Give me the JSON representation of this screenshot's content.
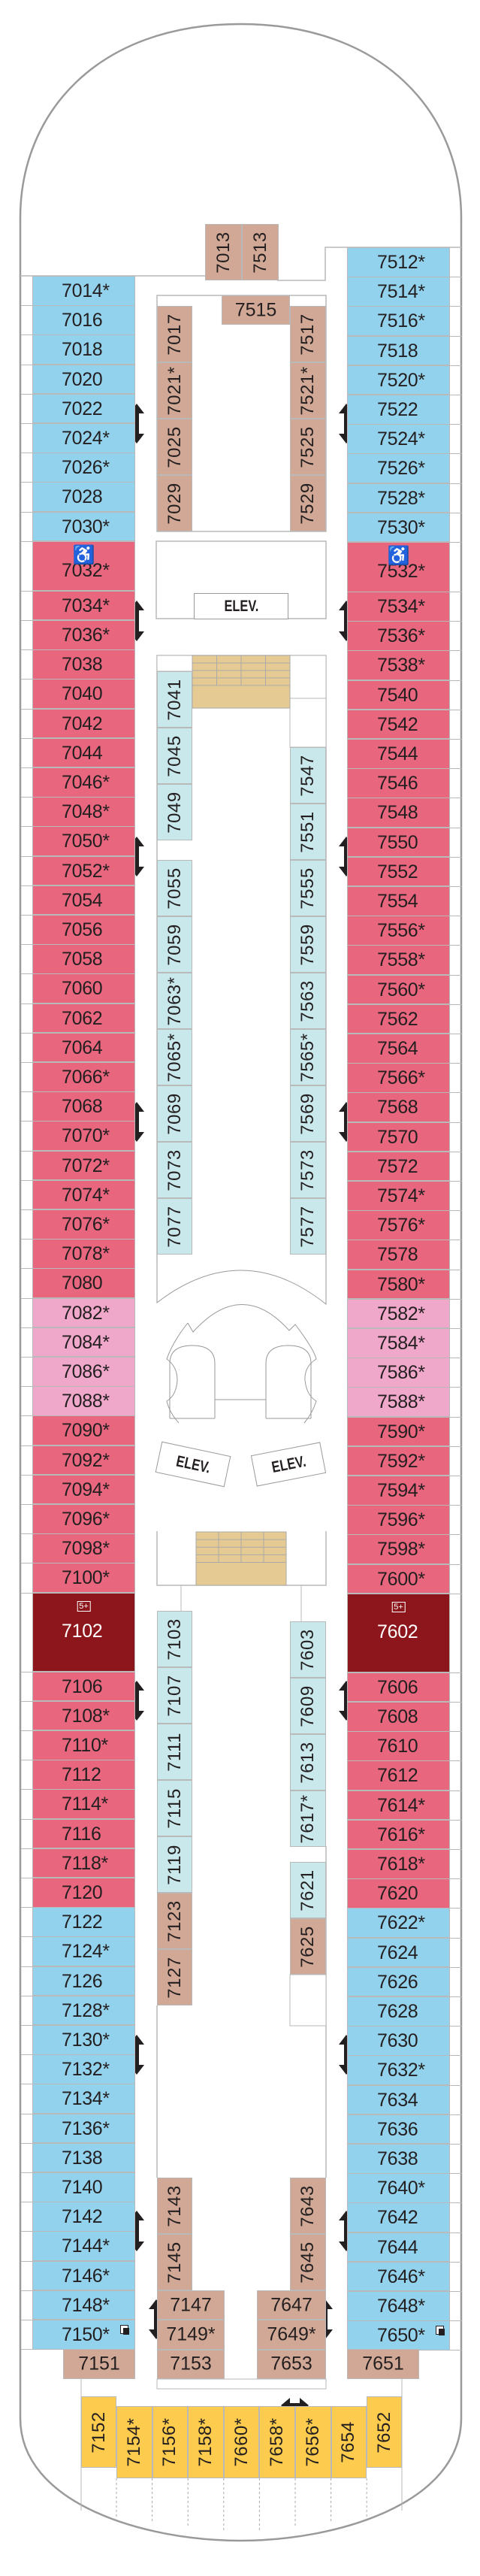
{
  "colors": {
    "blue": "#93D2EC",
    "red": "#E8667E",
    "pink": "#F0A8CA",
    "darkred": "#8C161B",
    "tan": "#D1A895",
    "cyan": "#C9E8EB",
    "yellow": "#FDCB4D",
    "stairs": "#E6CA93",
    "hull": "#9a9a9c"
  },
  "icons": {
    "accessible": "wheelchair-icon",
    "occupancy": "five-plus-icon",
    "connecting": "connecting-rooms-icon",
    "adjoining": "double-arrow-icon"
  },
  "port": [
    {
      "cat": "blue",
      "cabins": [
        "7014*",
        "7016",
        "7018",
        "7020",
        "7022",
        "7024*",
        "7026*",
        "7028",
        "7030*"
      ]
    },
    {
      "cat": "red",
      "accessible": true,
      "cabins": [
        "7032*"
      ]
    },
    {
      "cat": "red",
      "cabins": [
        "7034*",
        "7036*",
        "7038",
        "7040",
        "7042",
        "7044",
        "7046*",
        "7048*",
        "7050*",
        "7052*",
        "7054",
        "7056",
        "7058",
        "7060",
        "7062",
        "7064",
        "7066*",
        "7068",
        "7070*",
        "7072*",
        "7074*",
        "7076*",
        "7078*",
        "7080"
      ]
    },
    {
      "cat": "pink",
      "cabins": [
        "7082*",
        "7084*",
        "7086*",
        "7088*"
      ]
    },
    {
      "cat": "red",
      "cabins": [
        "7090*",
        "7092*",
        "7094*",
        "7096*",
        "7098*",
        "7100*"
      ]
    },
    {
      "cat": "darkred",
      "badge": "5+",
      "cabins": [
        "7102"
      ]
    },
    {
      "cat": "red",
      "cabins": [
        "7106",
        "7108*",
        "7110*",
        "7112",
        "7114*",
        "7116",
        "7118*",
        "7120"
      ]
    },
    {
      "cat": "blue",
      "cabins": [
        "7122",
        "7124*",
        "7126",
        "7128*",
        "7130*",
        "7132*",
        "7134*",
        "7136*",
        "7138",
        "7140",
        "7142",
        "7144*",
        "7146*",
        "7148*"
      ]
    },
    {
      "cat": "blue",
      "connecting": true,
      "cabins": [
        "7150*"
      ]
    }
  ],
  "starboard": [
    {
      "cat": "blue",
      "cabins": [
        "7512*",
        "7514*",
        "7516*",
        "7518",
        "7520*",
        "7522",
        "7524*",
        "7526*",
        "7528*",
        "7530*"
      ]
    },
    {
      "cat": "red",
      "accessible": true,
      "cabins": [
        "7532*"
      ]
    },
    {
      "cat": "red",
      "cabins": [
        "7534*",
        "7536*",
        "7538*",
        "7540",
        "7542",
        "7544",
        "7546",
        "7548",
        "7550",
        "7552",
        "7554",
        "7556*",
        "7558*",
        "7560*",
        "7562",
        "7564",
        "7566*",
        "7568",
        "7570",
        "7572",
        "7574*",
        "7576*",
        "7578",
        "7580*"
      ]
    },
    {
      "cat": "pink",
      "cabins": [
        "7582*",
        "7584*",
        "7586*",
        "7588*"
      ]
    },
    {
      "cat": "red",
      "cabins": [
        "7590*",
        "7592*",
        "7594*",
        "7596*",
        "7598*",
        "7600*"
      ]
    },
    {
      "cat": "darkred",
      "badge": "5+",
      "cabins": [
        "7602"
      ]
    },
    {
      "cat": "red",
      "cabins": [
        "7606",
        "7608",
        "7610",
        "7612",
        "7614*",
        "7616*",
        "7618*",
        "7620"
      ]
    },
    {
      "cat": "blue",
      "cabins": [
        "7622*",
        "7624",
        "7626",
        "7628",
        "7630",
        "7632*",
        "7634",
        "7636",
        "7638",
        "7640*",
        "7642",
        "7644",
        "7646*",
        "7648*"
      ]
    },
    {
      "cat": "blue",
      "connecting": true,
      "cabins": [
        "7650*"
      ]
    }
  ],
  "inner": {
    "fore_top": {
      "cat": "tan",
      "cabins": [
        "7013",
        "7513"
      ]
    },
    "fore_mid": {
      "cat": "tan",
      "cabins": [
        "7515"
      ]
    },
    "fore_port": {
      "cat": "tan",
      "cabins": [
        "7017",
        "7021*",
        "7025",
        "7029"
      ]
    },
    "fore_stbd": {
      "cat": "tan",
      "cabins": [
        "7517",
        "7521*",
        "7525",
        "7529"
      ]
    },
    "mid_port_a": {
      "cat": "cyan",
      "cabins": [
        "7041",
        "7045",
        "7049"
      ]
    },
    "mid_port_b": {
      "cat": "cyan",
      "cabins": [
        "7055",
        "7059",
        "7063*",
        "7065*",
        "7069",
        "7073",
        "7077"
      ]
    },
    "mid_stbd": {
      "cat": "cyan",
      "cabins": [
        "7547",
        "7551",
        "7555",
        "7559",
        "7563",
        "7565*",
        "7569",
        "7573",
        "7577"
      ]
    },
    "aft_port_a": {
      "cat": "cyan",
      "cabins": [
        "7103",
        "7107",
        "7111",
        "7115",
        "7119"
      ]
    },
    "aft_port_b": {
      "cat": "tan",
      "cabins": [
        "7123",
        "7127"
      ]
    },
    "aft_stbd_a": {
      "cat": "cyan",
      "cabins": [
        "7603",
        "7609",
        "7613",
        "7617*"
      ]
    },
    "aft_stbd_b": {
      "cat": "cyan",
      "cabins": [
        "7621"
      ]
    },
    "aft_stbd_c": {
      "cat": "tan",
      "cabins": [
        "7625"
      ]
    },
    "aft_port_c": {
      "cat": "tan",
      "cabins": [
        "7143",
        "7145"
      ]
    },
    "aft_stbd_d": {
      "cat": "tan",
      "cabins": [
        "7643",
        "7645"
      ]
    },
    "aft_port_h": {
      "cat": "tan",
      "cabins": [
        "7147",
        "7149*",
        "7153"
      ]
    },
    "aft_stbd_h": {
      "cat": "tan",
      "cabins": [
        "7647",
        "7649*",
        "7653"
      ]
    },
    "aft_corner_port": {
      "cat": "tan",
      "cabins": [
        "7151"
      ]
    },
    "aft_corner_stbd": {
      "cat": "tan",
      "cabins": [
        "7651"
      ]
    }
  },
  "stern": {
    "cat": "yellow",
    "cabins": [
      "7152",
      "7154*",
      "7156*",
      "7158*",
      "7660*",
      "7658*",
      "7656*",
      "7654",
      "7652"
    ]
  },
  "labels": {
    "elev_fore": "ELEV.",
    "elev_port": "ELEV.",
    "elev_stbd": "ELEV."
  }
}
